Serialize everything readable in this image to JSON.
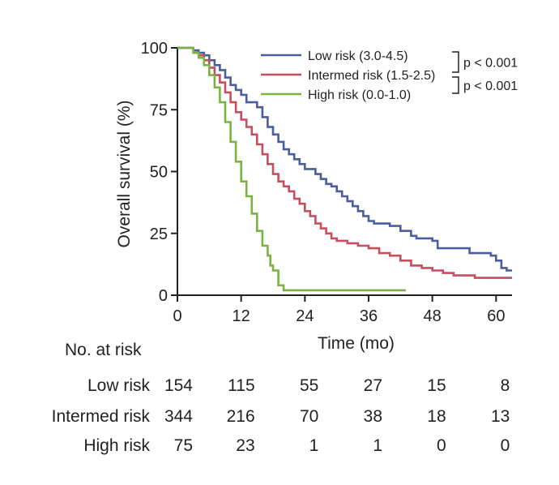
{
  "chart_data": {
    "type": "line",
    "xlabel": "Time (mo)",
    "ylabel": "Overall survival (%)",
    "xlim": [
      0,
      63
    ],
    "ylim": [
      0,
      100
    ],
    "xticks": [
      0,
      12,
      24,
      36,
      48,
      60
    ],
    "yticks": [
      0,
      25,
      50,
      75,
      100
    ],
    "xtick_labels": [
      "0",
      "12",
      "24",
      "36",
      "48",
      "60"
    ],
    "ytick_labels": [
      "0",
      "25",
      "50",
      "75",
      "100"
    ],
    "legend_position": "top-right",
    "series": [
      {
        "name": "Low risk (3.0-4.5)",
        "color": "#4a5d9c",
        "points": [
          [
            0,
            100
          ],
          [
            2,
            100
          ],
          [
            3,
            99
          ],
          [
            4,
            98
          ],
          [
            5,
            97
          ],
          [
            6,
            95
          ],
          [
            7,
            93
          ],
          [
            8,
            91
          ],
          [
            9,
            88
          ],
          [
            10,
            85
          ],
          [
            11,
            83
          ],
          [
            12,
            81
          ],
          [
            13,
            78
          ],
          [
            15,
            76
          ],
          [
            16,
            72
          ],
          [
            17,
            68
          ],
          [
            18,
            65
          ],
          [
            19,
            62
          ],
          [
            20,
            59
          ],
          [
            21,
            57
          ],
          [
            22,
            55
          ],
          [
            23,
            53
          ],
          [
            24,
            51
          ],
          [
            26,
            49
          ],
          [
            27,
            47
          ],
          [
            28,
            45
          ],
          [
            29,
            44
          ],
          [
            30,
            42
          ],
          [
            31,
            40
          ],
          [
            32,
            38
          ],
          [
            33,
            36
          ],
          [
            34,
            34
          ],
          [
            35,
            32
          ],
          [
            36,
            30
          ],
          [
            37,
            29
          ],
          [
            40,
            28
          ],
          [
            42,
            26
          ],
          [
            44,
            24
          ],
          [
            45,
            23
          ],
          [
            48,
            22
          ],
          [
            49,
            19
          ],
          [
            55,
            17
          ],
          [
            59,
            16
          ],
          [
            60,
            14
          ],
          [
            61,
            11
          ],
          [
            62,
            10
          ],
          [
            63,
            10
          ]
        ]
      },
      {
        "name": "Intermed risk (1.5-2.5)",
        "color": "#c64f5f",
        "points": [
          [
            0,
            100
          ],
          [
            2,
            100
          ],
          [
            3,
            98
          ],
          [
            4,
            97
          ],
          [
            5,
            95
          ],
          [
            6,
            92
          ],
          [
            7,
            89
          ],
          [
            8,
            86
          ],
          [
            9,
            82
          ],
          [
            10,
            78
          ],
          [
            11,
            74
          ],
          [
            12,
            71
          ],
          [
            13,
            68
          ],
          [
            14,
            65
          ],
          [
            15,
            61
          ],
          [
            16,
            57
          ],
          [
            17,
            53
          ],
          [
            18,
            49
          ],
          [
            19,
            46
          ],
          [
            20,
            44
          ],
          [
            21,
            42
          ],
          [
            22,
            39
          ],
          [
            23,
            37
          ],
          [
            24,
            34
          ],
          [
            25,
            32
          ],
          [
            26,
            29
          ],
          [
            27,
            27
          ],
          [
            28,
            25
          ],
          [
            29,
            23
          ],
          [
            30,
            22
          ],
          [
            32,
            21
          ],
          [
            34,
            20
          ],
          [
            36,
            19
          ],
          [
            38,
            17
          ],
          [
            40,
            16
          ],
          [
            42,
            14
          ],
          [
            44,
            12
          ],
          [
            46,
            11
          ],
          [
            48,
            10
          ],
          [
            50,
            9
          ],
          [
            52,
            8
          ],
          [
            54,
            8
          ],
          [
            56,
            7
          ],
          [
            58,
            7
          ],
          [
            60,
            7
          ],
          [
            63,
            7
          ]
        ]
      },
      {
        "name": "High risk (0.0-1.0)",
        "color": "#7ab343",
        "points": [
          [
            0,
            100
          ],
          [
            2,
            100
          ],
          [
            3,
            98
          ],
          [
            4,
            96
          ],
          [
            5,
            93
          ],
          [
            6,
            89
          ],
          [
            7,
            84
          ],
          [
            8,
            78
          ],
          [
            9,
            70
          ],
          [
            10,
            62
          ],
          [
            11,
            54
          ],
          [
            12,
            46
          ],
          [
            13,
            40
          ],
          [
            14,
            33
          ],
          [
            15,
            26
          ],
          [
            16,
            20
          ],
          [
            17,
            16
          ],
          [
            17.5,
            12
          ],
          [
            18,
            10
          ],
          [
            19,
            4
          ],
          [
            20,
            2
          ],
          [
            22,
            2
          ],
          [
            30,
            2
          ],
          [
            40,
            2
          ],
          [
            43,
            2
          ]
        ]
      }
    ],
    "annotations": [
      {
        "text": "p < 0.001",
        "between": [
          "Low risk (3.0-4.5)",
          "Intermed risk (1.5-2.5)"
        ]
      },
      {
        "text": "p < 0.001",
        "between": [
          "Intermed risk (1.5-2.5)",
          "High risk (0.0-1.0)"
        ]
      }
    ]
  },
  "risk_table": {
    "title": "No. at risk",
    "time_points": [
      0,
      12,
      24,
      36,
      48,
      60
    ],
    "rows": [
      {
        "label": "Low risk",
        "values": [
          "154",
          "115",
          "55",
          "27",
          "15",
          "8"
        ]
      },
      {
        "label": "Intermed risk",
        "values": [
          "344",
          "216",
          "70",
          "38",
          "18",
          "13"
        ]
      },
      {
        "label": "High risk",
        "values": [
          "75",
          "23",
          "1",
          "1",
          "0",
          "0"
        ]
      }
    ]
  }
}
